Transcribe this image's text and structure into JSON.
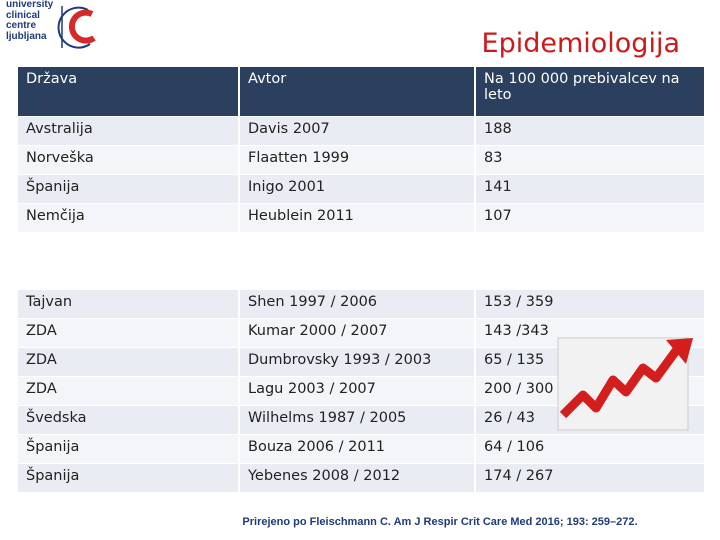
{
  "logo": {
    "lines": [
      "university",
      "clinical",
      "centre",
      "ljubljana"
    ]
  },
  "title": "Epidemiologija",
  "table": {
    "header": [
      "Država",
      "Avtor",
      "Na 100 000 prebivalcev na leto"
    ],
    "groups": [
      [
        [
          "Avstralija",
          "Davis 2007",
          "188"
        ],
        [
          "Norveška",
          "Flaatten 1999",
          "83"
        ],
        [
          "Španija",
          "Inigo 2001",
          "141"
        ],
        [
          "Nemčija",
          "Heublein 2011",
          "107"
        ]
      ],
      [
        [
          "Tajvan",
          "Shen 1997 / 2006",
          "153 / 359"
        ],
        [
          "ZDA",
          "Kumar 2000 / 2007",
          "143 /343"
        ],
        [
          "ZDA",
          "Dumbrovsky 1993 / 2003",
          "65 / 135"
        ],
        [
          "ZDA",
          "Lagu 2003 / 2007",
          "200 / 300"
        ],
        [
          "Švedska",
          "Wilhelms 1987 / 2005",
          "26 / 43"
        ],
        [
          "Španija",
          "Bouza 2006 / 2011",
          "64 / 106"
        ],
        [
          "Španija",
          "Yebenes 2008 / 2012",
          "174 / 267"
        ]
      ]
    ]
  },
  "citation": "Prirejeno po Fleischmann C. Am J Respir Crit Care Med 2016; 193: 259–272."
}
